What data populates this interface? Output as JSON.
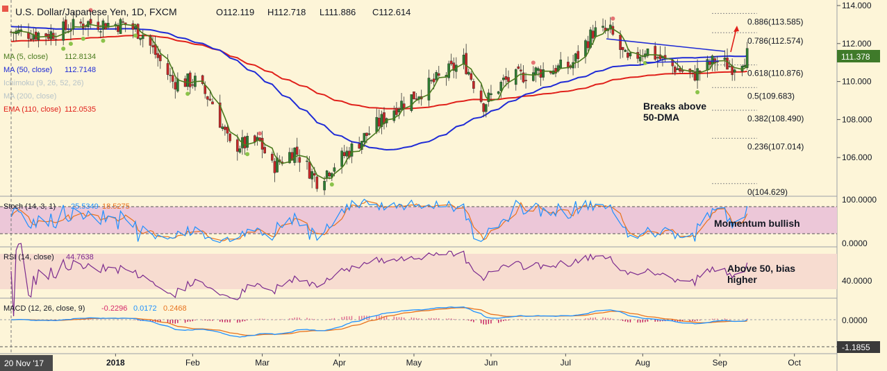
{
  "header": {
    "title": "U.S. Dollar/Japanese Yen, 1D, FXCM",
    "open": "O112.119",
    "high": "H112.718",
    "low": "L111.886",
    "close": "C112.614"
  },
  "indicators": [
    {
      "label": "MA (5, close)",
      "value": "112.8134",
      "color": "#4a7a1e"
    },
    {
      "label": "MA (50, close)",
      "value": "112.7148",
      "color": "#1f2bd6"
    },
    {
      "label": "Ichimoku (9, 26, 52, 26)",
      "value": "",
      "color": "#b8c4c8"
    },
    {
      "label": "MA (200, close)",
      "value": "",
      "color": "#b8c4c8"
    },
    {
      "label": "EMA (110, close)",
      "value": "112.0535",
      "color": "#e0201a"
    }
  ],
  "price_axis": {
    "ticks": [
      "114.000",
      "112.000",
      "110.000",
      "108.000",
      "106.000"
    ],
    "last_price": "111.378"
  },
  "fibonacci": [
    "0.886(113.585)",
    "0.786(112.574)",
    "0.618(110.876)",
    "0.5(109.683)",
    "0.382(108.490)",
    "0.236(107.014)",
    "0(104.629)"
  ],
  "annotations": {
    "breakout": [
      "Breaks above",
      "50-DMA"
    ],
    "momentum": "Momentum bullish",
    "rsi_note": [
      "Above 50, bias",
      "higher"
    ]
  },
  "stoch": {
    "label": "Stoch (14, 3, 1)",
    "k": "25.5349",
    "d": "18.5275",
    "axis": [
      "100.0000",
      "0.0000"
    ]
  },
  "rsi": {
    "label": "RSI (14, close)",
    "value": "44.7638",
    "axis": [
      "40.0000"
    ]
  },
  "macd": {
    "label": "MACD (12, 26, close, 9)",
    "hist": "-0.2296",
    "macd": "0.0172",
    "signal": "0.2468",
    "axis": [
      "0.0000",
      "-1.1855"
    ]
  },
  "x_axis": {
    "current_date": "20 Nov '17",
    "labels": [
      "2018",
      "Feb",
      "Mar",
      "Apr",
      "May",
      "Jun",
      "Jul",
      "Aug",
      "Sep",
      "Oct"
    ]
  },
  "chart_data": {
    "type": "candlestick",
    "title": "U.S. Dollar/Japanese Yen, 1D, FXCM",
    "ylim": [
      104.6,
      114.2
    ],
    "anchors_date_price": [
      [
        "2017-11-20",
        112.6
      ],
      [
        "2017-12-05",
        112.5
      ],
      [
        "2017-12-20",
        113.1
      ],
      [
        "2018-01-05",
        113.0
      ],
      [
        "2018-01-12",
        112.5
      ],
      [
        "2018-01-24",
        110.0
      ],
      [
        "2018-02-02",
        110.0
      ],
      [
        "2018-02-09",
        108.9
      ],
      [
        "2018-02-16",
        106.6
      ],
      [
        "2018-02-28",
        106.8
      ],
      [
        "2018-03-05",
        105.5
      ],
      [
        "2018-03-14",
        106.4
      ],
      [
        "2018-03-23",
        104.8
      ],
      [
        "2018-04-02",
        106.0
      ],
      [
        "2018-04-12",
        107.2
      ],
      [
        "2018-04-24",
        108.7
      ],
      [
        "2018-05-04",
        109.5
      ],
      [
        "2018-05-21",
        111.1
      ],
      [
        "2018-05-29",
        108.8
      ],
      [
        "2018-06-06",
        110.0
      ],
      [
        "2018-06-18",
        110.5
      ],
      [
        "2018-07-03",
        110.8
      ],
      [
        "2018-07-12",
        112.6
      ],
      [
        "2018-07-19",
        112.6
      ],
      [
        "2018-07-26",
        111.0
      ],
      [
        "2018-08-02",
        111.7
      ],
      [
        "2018-08-13",
        110.8
      ],
      [
        "2018-08-21",
        110.3
      ],
      [
        "2018-08-30",
        111.1
      ],
      [
        "2018-09-06",
        110.8
      ],
      [
        "2018-09-12",
        111.4
      ]
    ]
  }
}
